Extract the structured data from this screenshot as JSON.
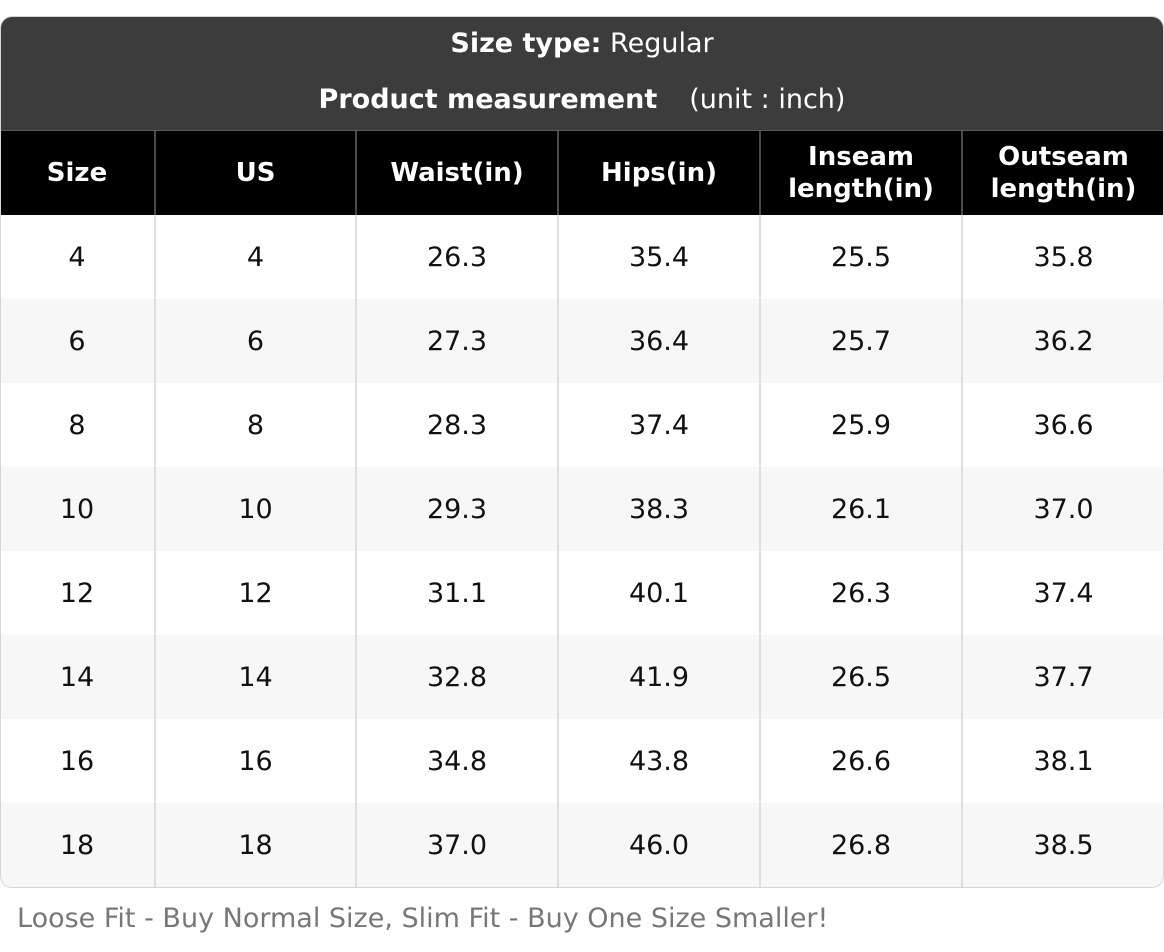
{
  "header": {
    "size_type_label": "Size type:",
    "size_type_value": "Regular",
    "measurement_label": "Product measurement",
    "unit_text": "(unit : inch)"
  },
  "table": {
    "columns": [
      "Size",
      "US",
      "Waist(in)",
      "Hips(in)",
      "Inseam length(in)",
      "Outseam length(in)"
    ],
    "rows": [
      [
        "4",
        "4",
        "26.3",
        "35.4",
        "25.5",
        "35.8"
      ],
      [
        "6",
        "6",
        "27.3",
        "36.4",
        "25.7",
        "36.2"
      ],
      [
        "8",
        "8",
        "28.3",
        "37.4",
        "25.9",
        "36.6"
      ],
      [
        "10",
        "10",
        "29.3",
        "38.3",
        "26.1",
        "37.0"
      ],
      [
        "12",
        "12",
        "31.1",
        "40.1",
        "26.3",
        "37.4"
      ],
      [
        "14",
        "14",
        "32.8",
        "41.9",
        "26.5",
        "37.7"
      ],
      [
        "16",
        "16",
        "34.8",
        "43.8",
        "26.6",
        "38.1"
      ],
      [
        "18",
        "18",
        "37.0",
        "46.0",
        "26.8",
        "38.5"
      ]
    ]
  },
  "footer": {
    "note": "Loose Fit - Buy Normal Size, Slim Fit - Buy One Size Smaller!"
  }
}
